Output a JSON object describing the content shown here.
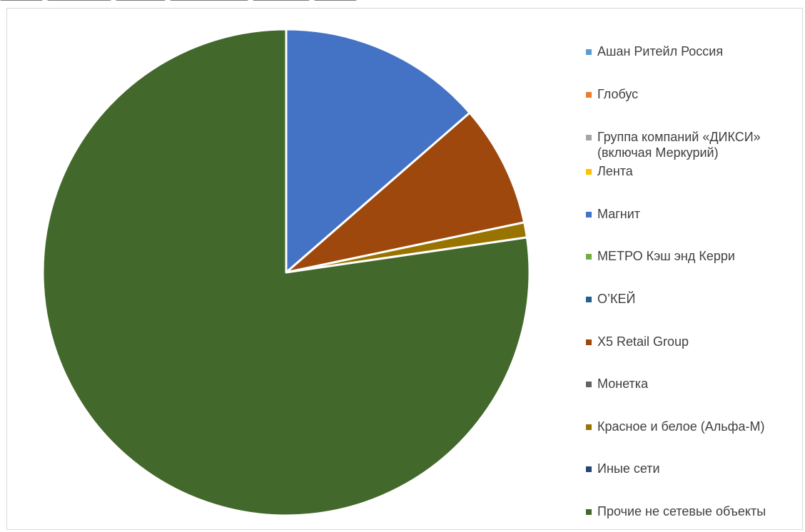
{
  "chart_data": {
    "type": "pie",
    "title": "",
    "start_angle_deg": 0,
    "direction": "clockwise",
    "series": [
      {
        "name": "Ашан Ритейл Россия",
        "value": 0,
        "color": "#5B9BD5"
      },
      {
        "name": "Глобус",
        "value": 0,
        "color": "#ED7D31"
      },
      {
        "name": "Группа компаний «ДИКСИ»\n(включая Меркурий)",
        "value": 0,
        "color": "#A5A5A5"
      },
      {
        "name": "Лента",
        "value": 0,
        "color": "#FFC000"
      },
      {
        "name": "Магнит",
        "value": 13.6,
        "color": "#4472C4"
      },
      {
        "name": "МЕТРО Кэш энд Керри",
        "value": 0,
        "color": "#70AD47"
      },
      {
        "name": "О’КЕЙ",
        "value": 0,
        "color": "#255E91"
      },
      {
        "name": "X5 Retail Group",
        "value": 8.1,
        "color": "#9E480E"
      },
      {
        "name": "Монетка",
        "value": 0,
        "color": "#636363"
      },
      {
        "name": "Красное и белое (Альфа-М)",
        "value": 1.0,
        "color": "#997300"
      },
      {
        "name": "Иные  сети",
        "value": 0,
        "color": "#264478"
      },
      {
        "name": "Прочие не сетевые объекты",
        "value": 77.3,
        "color": "#43682B"
      }
    ],
    "legend_position": "right"
  }
}
